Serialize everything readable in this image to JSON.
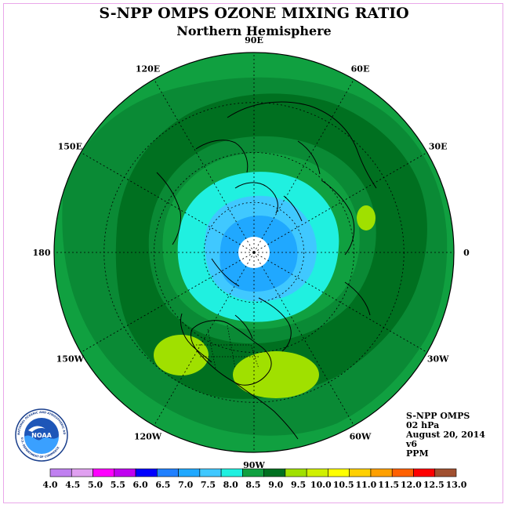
{
  "title": "S-NPP OMPS OZONE MIXING RATIO",
  "subtitle": "Northern Hemisphere",
  "longitude_labels": [
    "90E",
    "60E",
    "30E",
    "0",
    "30W",
    "60W",
    "90W",
    "120W",
    "150W",
    "180",
    "150E",
    "120E"
  ],
  "info": {
    "instrument": "S-NPP OMPS",
    "level": "02 hPa",
    "date": "August 20, 2014",
    "version": "v6",
    "units": "PPM"
  },
  "logo": {
    "text": "NOAA",
    "ring_text": "NATIONAL OCEANIC AND ATMOSPHERIC ADMINISTRATION",
    "ring_text_bottom": "U.S. DEPARTMENT OF COMMERCE"
  },
  "colorbar": {
    "ticks": [
      "4.0",
      "4.5",
      "5.0",
      "5.5",
      "6.0",
      "6.5",
      "7.0",
      "7.5",
      "8.0",
      "8.5",
      "9.0",
      "9.5",
      "10.0",
      "10.5",
      "11.0",
      "11.5",
      "12.0",
      "12.5",
      "13.0"
    ],
    "colors": [
      "#c080f0",
      "#e0a0f0",
      "#ff00ff",
      "#c000f0",
      "#0000ff",
      "#2080ff",
      "#20a8ff",
      "#40c8ff",
      "#20f0e0",
      "#10a040",
      "#007020",
      "#a0e000",
      "#d0f000",
      "#ffff00",
      "#ffd000",
      "#ffa000",
      "#ff6000",
      "#ff0000",
      "#a05030"
    ]
  }
}
